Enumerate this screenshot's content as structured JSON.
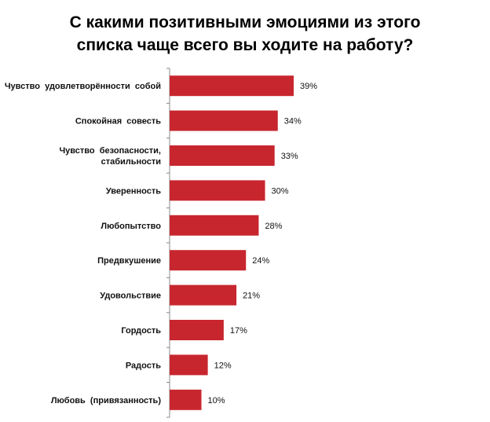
{
  "chart_data": {
    "type": "bar",
    "orientation": "horizontal",
    "title": "С какими позитивными эмоциями из этого\nсписка чаще всего вы ходите на работу?",
    "categories": [
      [
        "Чувство  удовлетворённости  собой"
      ],
      [
        "Спокойная  совесть"
      ],
      [
        "Чувство  безопасности,",
        "стабильности"
      ],
      [
        "Уверенность"
      ],
      [
        "Любопытство"
      ],
      [
        "Предвкушение"
      ],
      [
        "Удовольствие"
      ],
      [
        "Гордость"
      ],
      [
        "Радость"
      ],
      [
        "Любовь  (привязанность)"
      ]
    ],
    "values": [
      39,
      34,
      33,
      30,
      28,
      24,
      21,
      17,
      12,
      10
    ],
    "value_labels": [
      "39%",
      "34%",
      "33%",
      "30%",
      "28%",
      "24%",
      "21%",
      "17%",
      "12%",
      "10%"
    ],
    "unit": "%",
    "bar_color": "#c8262e",
    "grid": false,
    "legend": "none"
  }
}
